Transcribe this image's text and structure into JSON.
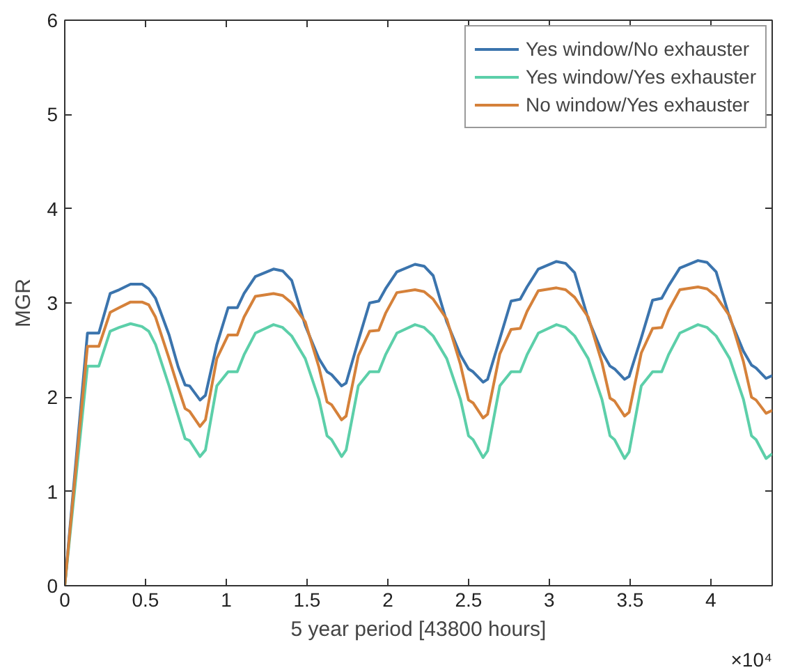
{
  "chart_data": {
    "type": "line",
    "xlabel": "5 year period [43800 hours]",
    "ylabel": "MGR",
    "annotations": [
      "×10⁴"
    ],
    "x": [
      0,
      0.1405,
      0.211,
      0.281,
      0.337,
      0.4075,
      0.478,
      0.52,
      0.562,
      0.646,
      0.7025,
      0.745,
      0.773,
      0.8375,
      0.871,
      0.9415,
      1.0115,
      1.068,
      1.11,
      1.18,
      1.2925,
      1.349,
      1.405,
      1.489,
      1.5735,
      1.624,
      1.652,
      1.714,
      1.742,
      1.8175,
      1.8875,
      1.944,
      1.986,
      2.056,
      2.1685,
      2.225,
      2.281,
      2.365,
      2.4495,
      2.5,
      2.528,
      2.59,
      2.618,
      2.6935,
      2.7635,
      2.82,
      2.862,
      2.932,
      3.0445,
      3.101,
      3.157,
      3.241,
      3.3255,
      3.376,
      3.404,
      3.466,
      3.494,
      3.5695,
      3.6395,
      3.696,
      3.738,
      3.808,
      3.9205,
      3.977,
      4.033,
      4.117,
      4.2015,
      4.252,
      4.28,
      4.342,
      4.38
    ],
    "series": [
      {
        "name": "Yes window/No exhauster",
        "color": "#3b74ad",
        "values": [
          0,
          2.68,
          2.68,
          3.1,
          3.14,
          3.2,
          3.2,
          3.15,
          3.05,
          2.66,
          2.32,
          2.13,
          2.12,
          1.97,
          2.02,
          2.56,
          2.95,
          2.95,
          3.1,
          3.28,
          3.36,
          3.34,
          3.24,
          2.76,
          2.41,
          2.27,
          2.24,
          2.12,
          2.15,
          2.6,
          3.0,
          3.02,
          3.15,
          3.33,
          3.41,
          3.39,
          3.29,
          2.8,
          2.45,
          2.3,
          2.27,
          2.16,
          2.19,
          2.62,
          3.02,
          3.04,
          3.17,
          3.36,
          3.44,
          3.42,
          3.32,
          2.83,
          2.48,
          2.33,
          2.3,
          2.19,
          2.22,
          2.63,
          3.03,
          3.05,
          3.18,
          3.37,
          3.45,
          3.43,
          3.33,
          2.84,
          2.49,
          2.34,
          2.31,
          2.2,
          2.23
        ]
      },
      {
        "name": "Yes window/Yes exhauster",
        "color": "#5ccfa9",
        "values": [
          0,
          2.33,
          2.33,
          2.7,
          2.74,
          2.78,
          2.75,
          2.7,
          2.56,
          2.12,
          1.8,
          1.56,
          1.54,
          1.37,
          1.44,
          2.12,
          2.27,
          2.27,
          2.45,
          2.68,
          2.77,
          2.74,
          2.65,
          2.41,
          1.98,
          1.59,
          1.55,
          1.37,
          1.44,
          2.12,
          2.27,
          2.27,
          2.45,
          2.68,
          2.77,
          2.74,
          2.65,
          2.41,
          1.98,
          1.59,
          1.55,
          1.36,
          1.43,
          2.12,
          2.27,
          2.27,
          2.45,
          2.68,
          2.77,
          2.74,
          2.65,
          2.41,
          1.98,
          1.59,
          1.55,
          1.35,
          1.42,
          2.12,
          2.27,
          2.27,
          2.45,
          2.68,
          2.77,
          2.74,
          2.65,
          2.41,
          1.98,
          1.59,
          1.55,
          1.35,
          1.4
        ]
      },
      {
        "name": "No window/Yes exhauster",
        "color": "#d5813a",
        "values": [
          0,
          2.54,
          2.54,
          2.9,
          2.95,
          3.01,
          3.01,
          2.98,
          2.85,
          2.41,
          2.1,
          1.88,
          1.85,
          1.69,
          1.76,
          2.41,
          2.66,
          2.66,
          2.85,
          3.07,
          3.1,
          3.08,
          3.0,
          2.8,
          2.32,
          1.95,
          1.92,
          1.76,
          1.8,
          2.44,
          2.7,
          2.71,
          2.89,
          3.11,
          3.14,
          3.12,
          3.04,
          2.83,
          2.35,
          1.97,
          1.94,
          1.78,
          1.82,
          2.46,
          2.72,
          2.73,
          2.91,
          3.13,
          3.16,
          3.14,
          3.06,
          2.85,
          2.37,
          1.99,
          1.96,
          1.8,
          1.84,
          2.47,
          2.73,
          2.74,
          2.92,
          3.14,
          3.17,
          3.15,
          3.07,
          2.86,
          2.38,
          2.0,
          1.97,
          1.83,
          1.86
        ]
      }
    ],
    "xlim": [
      0,
      4.38
    ],
    "ylim": [
      0,
      6
    ],
    "xticks": [
      0,
      0.5,
      1,
      1.5,
      2,
      2.5,
      3,
      3.5,
      4
    ],
    "yticks": [
      0,
      1,
      2,
      3,
      4,
      5,
      6
    ],
    "grid": false,
    "legend": "top right",
    "marker": "none",
    "line_style": "solid"
  }
}
